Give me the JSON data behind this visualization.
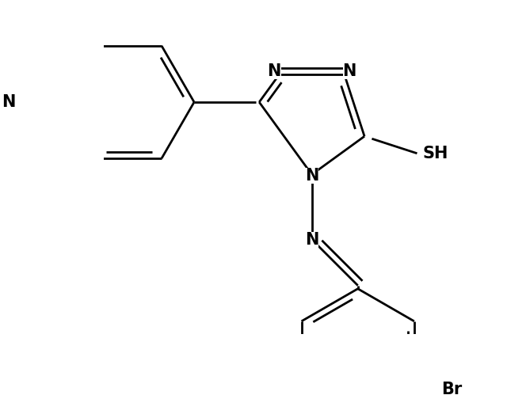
{
  "background_color": "#ffffff",
  "line_color": "#000000",
  "line_width": 2.0,
  "font_size": 15,
  "figsize": [
    6.4,
    4.99
  ],
  "dpi": 100,
  "xlim": [
    -2.8,
    2.8
  ],
  "ylim": [
    -2.8,
    2.3
  ]
}
